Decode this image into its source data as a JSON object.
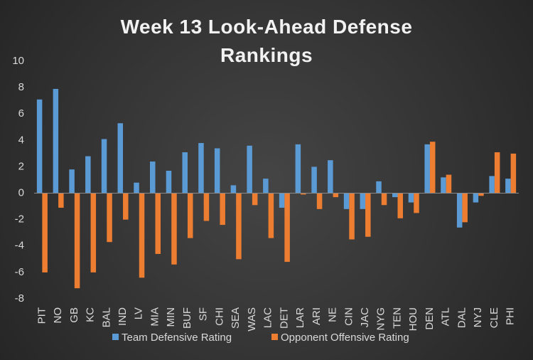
{
  "chart_data": {
    "type": "bar",
    "title": "Week 13 Look-Ahead Defense Rankings",
    "categories": [
      "PIT",
      "NO",
      "GB",
      "KC",
      "BAL",
      "IND",
      "LV",
      "MIA",
      "MIN",
      "BUF",
      "SF",
      "CHI",
      "SEA",
      "WAS",
      "LAC",
      "DET",
      "LAR",
      "ARI",
      "NE",
      "CIN",
      "JAC",
      "NYG",
      "TEN",
      "HOU",
      "DEN",
      "ATL",
      "DAL",
      "NYJ",
      "CLE",
      "PHI"
    ],
    "series": [
      {
        "name": "Team Defensive Rating",
        "color": "#5b9bd5",
        "values": [
          7.1,
          7.9,
          1.8,
          2.8,
          4.1,
          5.3,
          0.8,
          2.4,
          1.7,
          3.1,
          3.8,
          3.4,
          0.6,
          3.6,
          1.1,
          -1.1,
          3.7,
          2.0,
          2.5,
          -1.2,
          -1.2,
          0.9,
          -0.3,
          -0.7,
          3.7,
          1.2,
          -2.6,
          -0.7,
          1.3,
          1.1
        ]
      },
      {
        "name": "Opponent Offensive Rating",
        "color": "#ed7d31",
        "values": [
          -6.0,
          -1.1,
          -7.2,
          -6.0,
          -3.7,
          -2.0,
          -6.4,
          -4.6,
          -5.4,
          -3.4,
          -2.1,
          -2.4,
          -5.0,
          -0.9,
          -3.4,
          -5.2,
          -0.1,
          -1.2,
          -0.3,
          -3.5,
          -3.3,
          -0.9,
          -1.9,
          -1.5,
          3.9,
          1.4,
          -2.2,
          -0.2,
          3.1,
          3.0
        ]
      }
    ],
    "ylim": [
      -8,
      10
    ],
    "yticks": [
      -8,
      -6,
      -4,
      -2,
      0,
      2,
      4,
      6,
      8,
      10
    ],
    "grid": false,
    "legend": "bottom"
  }
}
